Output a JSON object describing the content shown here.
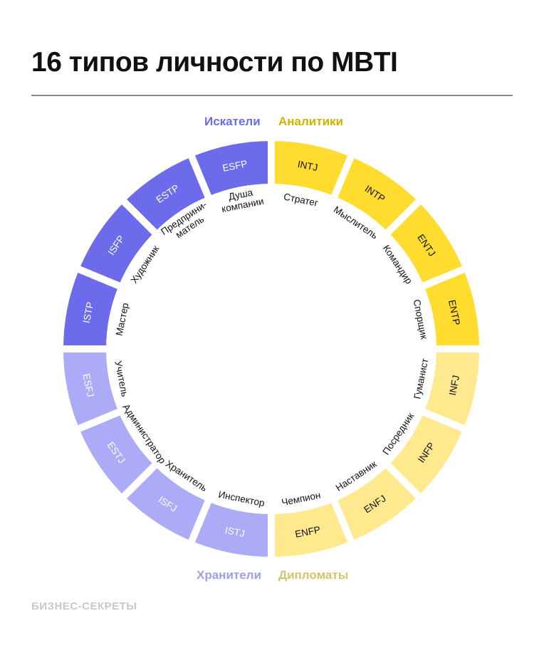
{
  "title": "16 типов личности по MBTI",
  "brand": "БИЗНЕС-СЕКРЕТЫ",
  "groups": {
    "seekers": {
      "label": "Искатели",
      "color": "#6B6BEB",
      "text_color": "#6B6BEB"
    },
    "analysts": {
      "label": "Аналитики",
      "color": "#FFDC2E",
      "text_color": "#D1B200"
    },
    "keepers": {
      "label": "Хранители",
      "color": "#ABABF7",
      "text_color": "#9F9FE6"
    },
    "diplomats": {
      "label": "Дипломаты",
      "color": "#FFE98F",
      "text_color": "#D6C36A"
    }
  },
  "types": [
    {
      "code": "INTJ",
      "name": "Стратег",
      "group": "analysts"
    },
    {
      "code": "INTP",
      "name": "Мыслитель",
      "group": "analysts"
    },
    {
      "code": "ENTJ",
      "name": "Командир",
      "group": "analysts"
    },
    {
      "code": "ENTP",
      "name": "Спорщик",
      "group": "analysts"
    },
    {
      "code": "INFJ",
      "name": "Гуманист",
      "group": "diplomats"
    },
    {
      "code": "INFP",
      "name": "Посредник",
      "group": "diplomats"
    },
    {
      "code": "ENFJ",
      "name": "Наставник",
      "group": "diplomats"
    },
    {
      "code": "ENFP",
      "name": "Чемпион",
      "group": "diplomats"
    },
    {
      "code": "ISTJ",
      "name": "Инспектор",
      "group": "keepers"
    },
    {
      "code": "ISFJ",
      "name": "Хранитель",
      "group": "keepers"
    },
    {
      "code": "ESTJ",
      "name": "Администратор",
      "group": "keepers"
    },
    {
      "code": "ESFJ",
      "name": "Учитель",
      "group": "keepers"
    },
    {
      "code": "ISTP",
      "name": "Мастер",
      "group": "seekers"
    },
    {
      "code": "ISFP",
      "name": "Художник",
      "group": "seekers"
    },
    {
      "code": "ESTP",
      "name": "Предприни-\nматель",
      "group": "seekers"
    },
    {
      "code": "ESFP",
      "name": "Душа\nкомпании",
      "group": "seekers"
    }
  ]
}
